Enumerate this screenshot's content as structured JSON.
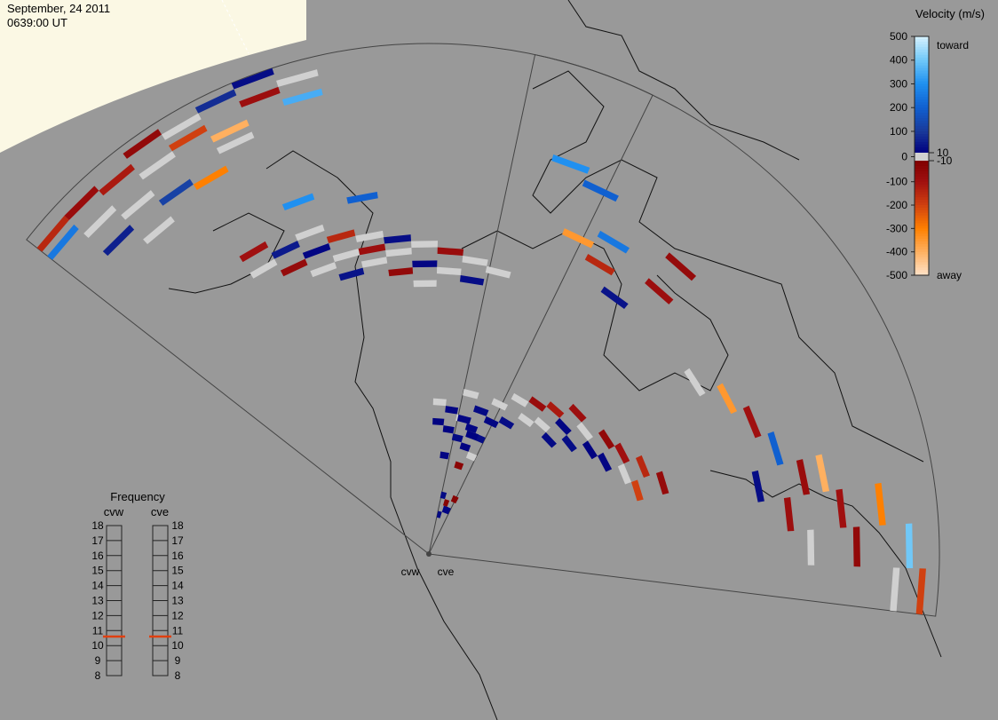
{
  "header": {
    "date": "September, 24 2011",
    "time": "0639:00 UT"
  },
  "colorbar": {
    "title": "Velocity (m/s)",
    "top_label": "toward",
    "bottom_label": "away",
    "ticks": [
      500,
      400,
      300,
      200,
      100,
      10,
      0,
      -10,
      -100,
      -200,
      -300,
      -400,
      -500
    ]
  },
  "frequency": {
    "title": "Frequency",
    "ticks": [
      8,
      9,
      10,
      11,
      12,
      13,
      14,
      15,
      16,
      17,
      18
    ]
  },
  "radars": [
    {
      "name": "cvw",
      "frequency": 10.6,
      "cells": [
        [
          0,
          72,
          -150
        ],
        [
          0,
          70,
          250
        ],
        [
          1,
          72,
          -80
        ],
        [
          1,
          68,
          0
        ],
        [
          2,
          71,
          -120
        ],
        [
          2,
          66,
          0
        ],
        [
          3,
          73,
          -60
        ],
        [
          3,
          69,
          0
        ],
        [
          3,
          64,
          120
        ],
        [
          4,
          72,
          0
        ],
        [
          4,
          70,
          -200
        ],
        [
          5,
          73,
          80
        ],
        [
          5,
          68,
          -400
        ],
        [
          5,
          66,
          0
        ],
        [
          6,
          74,
          30
        ],
        [
          6,
          71,
          -90
        ],
        [
          7,
          72,
          0
        ],
        [
          7,
          69,
          350
        ],
        [
          2,
          61,
          0
        ],
        [
          4,
          63,
          -300
        ],
        [
          1,
          64,
          60
        ],
        [
          4,
          50,
          -100
        ],
        [
          4,
          47,
          0
        ],
        [
          5,
          48,
          50
        ],
        [
          5,
          45,
          -70
        ],
        [
          6,
          49,
          0
        ],
        [
          6,
          46,
          20
        ],
        [
          6,
          43,
          0
        ],
        [
          7,
          47,
          -150
        ],
        [
          7,
          44,
          0
        ],
        [
          7,
          41,
          40
        ],
        [
          8,
          46,
          0
        ],
        [
          8,
          44,
          -90
        ],
        [
          8,
          42,
          0
        ],
        [
          9,
          45,
          30
        ],
        [
          9,
          43,
          0
        ],
        [
          9,
          40,
          -60
        ],
        [
          10,
          44,
          0
        ],
        [
          10,
          41,
          20
        ],
        [
          10,
          38,
          0
        ],
        [
          11,
          43,
          -80
        ],
        [
          11,
          40,
          0
        ],
        [
          12,
          42,
          0
        ],
        [
          12,
          39,
          30
        ],
        [
          13,
          41,
          0
        ],
        [
          8,
          52,
          200
        ],
        [
          6,
          54,
          300
        ],
        [
          11,
          20,
          0
        ],
        [
          11,
          17,
          15
        ],
        [
          12,
          19,
          20
        ],
        [
          12,
          16,
          15
        ],
        [
          13,
          18,
          0
        ],
        [
          13,
          15,
          25
        ],
        [
          14,
          17,
          20
        ],
        [
          14,
          14,
          15
        ],
        [
          15,
          16,
          30
        ],
        [
          15,
          13,
          0
        ],
        [
          12,
          12,
          20
        ],
        [
          14,
          11,
          -40
        ],
        [
          13,
          6,
          25
        ],
        [
          14,
          5,
          -30
        ],
        [
          15,
          4,
          20
        ]
      ]
    },
    {
      "name": "cve",
      "frequency": 10.6,
      "cells": [
        [
          0,
          18,
          20
        ],
        [
          0,
          22,
          0
        ],
        [
          1,
          20,
          25
        ],
        [
          1,
          16,
          15
        ],
        [
          2,
          22,
          0
        ],
        [
          2,
          19,
          20
        ],
        [
          3,
          24,
          0
        ],
        [
          3,
          20,
          30
        ],
        [
          4,
          25,
          -80
        ],
        [
          4,
          22,
          0
        ],
        [
          5,
          26,
          -120
        ],
        [
          5,
          23,
          0
        ],
        [
          6,
          28,
          -90
        ],
        [
          6,
          25,
          20
        ],
        [
          6,
          22,
          25
        ],
        [
          7,
          27,
          0
        ],
        [
          7,
          24,
          30
        ],
        [
          8,
          29,
          -60
        ],
        [
          8,
          26,
          15
        ],
        [
          9,
          30,
          -100
        ],
        [
          9,
          27,
          20
        ],
        [
          10,
          32,
          -150
        ],
        [
          10,
          29,
          0
        ],
        [
          11,
          34,
          -70
        ],
        [
          11,
          30,
          -200
        ],
        [
          12,
          58,
          -400
        ],
        [
          12,
          55,
          -80
        ],
        [
          13,
          60,
          -100
        ],
        [
          13,
          66,
          -300
        ],
        [
          14,
          62,
          -60
        ],
        [
          14,
          70,
          400
        ],
        [
          15,
          72,
          -200
        ],
        [
          15,
          68,
          0
        ],
        [
          11,
          52,
          200
        ],
        [
          10,
          50,
          -100
        ],
        [
          9,
          48,
          -350
        ],
        [
          8,
          45,
          0
        ],
        [
          13,
          52,
          -90
        ],
        [
          14,
          55,
          0
        ],
        [
          12,
          48,
          30
        ],
        [
          3,
          48,
          -150
        ],
        [
          3,
          52,
          250
        ],
        [
          2,
          58,
          200
        ],
        [
          4,
          45,
          40
        ],
        [
          5,
          50,
          -90
        ],
        [
          5,
          55,
          -70
        ],
        [
          1,
          60,
          300
        ],
        [
          2,
          50,
          -350
        ],
        [
          1,
          4,
          20
        ],
        [
          2,
          6,
          -30
        ],
        [
          0,
          3,
          25
        ]
      ]
    }
  ]
}
